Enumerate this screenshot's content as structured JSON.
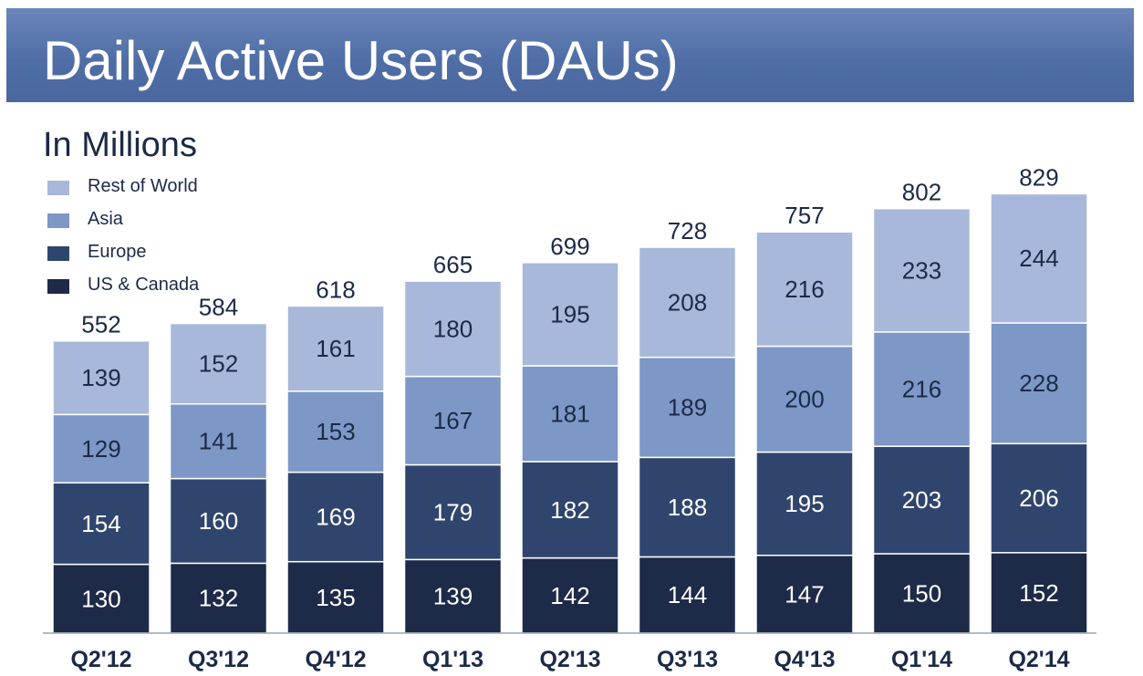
{
  "header": {
    "title": "Daily Active Users (DAUs)",
    "subtitle": "In Millions"
  },
  "legend": [
    {
      "label": "Rest of World",
      "color": "#a8b8da"
    },
    {
      "label": "Asia",
      "color": "#7d97c6"
    },
    {
      "label": "Europe",
      "color": "#30456e"
    },
    {
      "label": "US & Canada",
      "color": "#1d2a48"
    }
  ],
  "chart_data": {
    "type": "bar",
    "stacked": true,
    "categories": [
      "Q2'12",
      "Q3'12",
      "Q4'12",
      "Q1'13",
      "Q2'13",
      "Q3'13",
      "Q4'13",
      "Q1'14",
      "Q2'14"
    ],
    "series": [
      {
        "name": "US & Canada",
        "color": "#1d2a48",
        "values": [
          130,
          132,
          135,
          139,
          142,
          144,
          147,
          150,
          152
        ]
      },
      {
        "name": "Europe",
        "color": "#30456e",
        "values": [
          154,
          160,
          169,
          179,
          182,
          188,
          195,
          203,
          206
        ]
      },
      {
        "name": "Asia",
        "color": "#7d97c6",
        "values": [
          129,
          141,
          153,
          167,
          181,
          189,
          200,
          216,
          228
        ]
      },
      {
        "name": "Rest of World",
        "color": "#a8b8da",
        "values": [
          139,
          152,
          161,
          180,
          195,
          208,
          216,
          233,
          244
        ]
      }
    ],
    "totals": [
      552,
      584,
      618,
      665,
      699,
      728,
      757,
      802,
      829
    ],
    "ylim": [
      0,
      829
    ],
    "grid": false,
    "legend_position": "top-left"
  }
}
